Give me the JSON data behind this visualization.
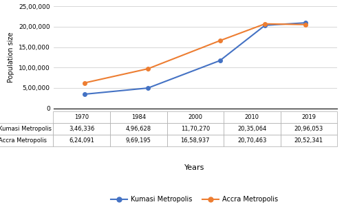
{
  "years": [
    1970,
    1984,
    2000,
    2010,
    2019
  ],
  "kumasi": [
    346336,
    496628,
    1170270,
    2035064,
    2096053
  ],
  "accra": [
    624091,
    969195,
    1658937,
    2070463,
    2052341
  ],
  "kumasi_label": "Kumasi Metropolis",
  "accra_label": "Accra Metropolis",
  "kumasi_color": "#4472C4",
  "accra_color": "#ED7D31",
  "ylabel": "Population size",
  "xlabel": "Years",
  "ylim": [
    0,
    2500000
  ],
  "yticks": [
    0,
    500000,
    1000000,
    1500000,
    2000000,
    2500000
  ],
  "ytick_labels": [
    "0",
    "5,00,000",
    "10,00,000",
    "15,00,000",
    "20,00,000",
    "25,00,000"
  ],
  "table_kumasi": [
    "3,46,336",
    "4,96,628",
    "11,70,270",
    "20,35,064",
    "20,96,053"
  ],
  "table_accra": [
    "6,24,091",
    "9,69,195",
    "16,58,937",
    "20,70,463",
    "20,52,341"
  ],
  "table_years": [
    "1970",
    "1984",
    "2000",
    "2010",
    "2019"
  ],
  "table_rows": [
    "Kumasi Metropolis",
    "Accra Metropolis"
  ]
}
